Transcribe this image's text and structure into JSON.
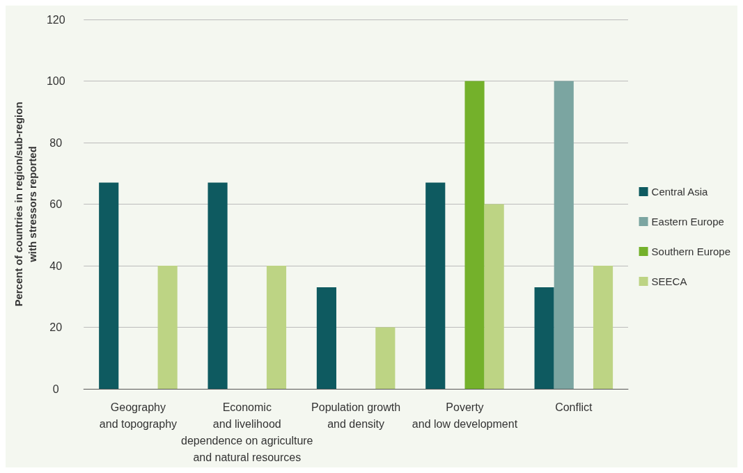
{
  "chart_data": {
    "type": "bar",
    "ylabel": "Percent of countries in region/sub-region\nwith stressors reported",
    "categories": [
      "Geography\nand topography",
      "Economic\nand livelihood\ndependence on agriculture\nand natural resources",
      "Population growth\nand density",
      "Poverty\nand low development",
      "Conflict"
    ],
    "series": [
      {
        "name": "Central Asia",
        "color": "#0e5a60",
        "values": [
          67,
          67,
          33,
          67,
          33
        ]
      },
      {
        "name": "Eastern Europe",
        "color": "#7ba5a1",
        "values": [
          0,
          0,
          0,
          0,
          100
        ]
      },
      {
        "name": "Southern Europe",
        "color": "#74b12b",
        "values": [
          0,
          0,
          0,
          100,
          0
        ]
      },
      {
        "name": "SEECA",
        "color": "#bdd484",
        "values": [
          40,
          40,
          20,
          60,
          40
        ]
      }
    ],
    "ylim": [
      0,
      120
    ],
    "yticks": [
      0,
      20,
      40,
      60,
      80,
      100,
      120
    ],
    "grid": "y",
    "legend": "right"
  }
}
